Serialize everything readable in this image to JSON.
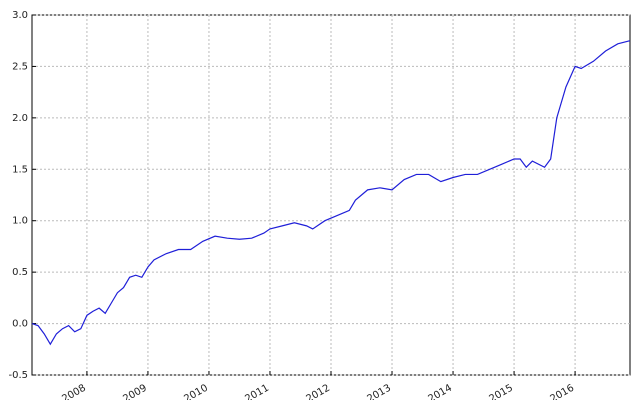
{
  "chart_data": {
    "type": "line",
    "x": [
      2007.1,
      2007.2,
      2007.3,
      2007.4,
      2007.5,
      2007.6,
      2007.7,
      2007.8,
      2007.9,
      2008.0,
      2008.1,
      2008.2,
      2008.3,
      2008.4,
      2008.5,
      2008.6,
      2008.7,
      2008.8,
      2008.9,
      2009.0,
      2009.1,
      2009.3,
      2009.5,
      2009.7,
      2009.9,
      2010.1,
      2010.3,
      2010.5,
      2010.7,
      2010.9,
      2011.0,
      2011.2,
      2011.4,
      2011.6,
      2011.7,
      2011.9,
      2012.1,
      2012.3,
      2012.4,
      2012.6,
      2012.8,
      2013.0,
      2013.2,
      2013.4,
      2013.6,
      2013.8,
      2014.0,
      2014.2,
      2014.4,
      2014.6,
      2014.8,
      2015.0,
      2015.1,
      2015.2,
      2015.3,
      2015.5,
      2015.6,
      2015.7,
      2015.85,
      2016.0,
      2016.1,
      2016.3,
      2016.5,
      2016.7,
      2016.9
    ],
    "series": [
      {
        "color": "#1f1fd8",
        "values": [
          0.0,
          -0.02,
          -0.1,
          -0.2,
          -0.1,
          -0.05,
          -0.02,
          -0.08,
          -0.05,
          0.08,
          0.12,
          0.15,
          0.1,
          0.2,
          0.3,
          0.35,
          0.45,
          0.47,
          0.45,
          0.55,
          0.62,
          0.68,
          0.72,
          0.72,
          0.8,
          0.85,
          0.83,
          0.82,
          0.83,
          0.88,
          0.92,
          0.95,
          0.98,
          0.95,
          0.92,
          1.0,
          1.05,
          1.1,
          1.2,
          1.3,
          1.32,
          1.3,
          1.4,
          1.45,
          1.45,
          1.38,
          1.42,
          1.45,
          1.45,
          1.5,
          1.55,
          1.6,
          1.6,
          1.52,
          1.58,
          1.52,
          1.6,
          2.0,
          2.3,
          2.5,
          2.48,
          2.55,
          2.65,
          2.72,
          2.75
        ]
      }
    ],
    "xlim": [
      2007.1,
      2016.9
    ],
    "xticks": [
      2008,
      2009,
      2010,
      2011,
      2012,
      2013,
      2014,
      2015,
      2016
    ],
    "ylim": [
      -0.5,
      3.0
    ],
    "yticks": [
      -0.5,
      {
        "value": 0,
        "label": "0.0"
      },
      0.5,
      {
        "value": 1,
        "label": "1.0"
      },
      1.5,
      {
        "value": 2,
        "label": "2.0"
      },
      2.5,
      {
        "value": 3,
        "label": "3.0"
      }
    ],
    "grid": true
  }
}
